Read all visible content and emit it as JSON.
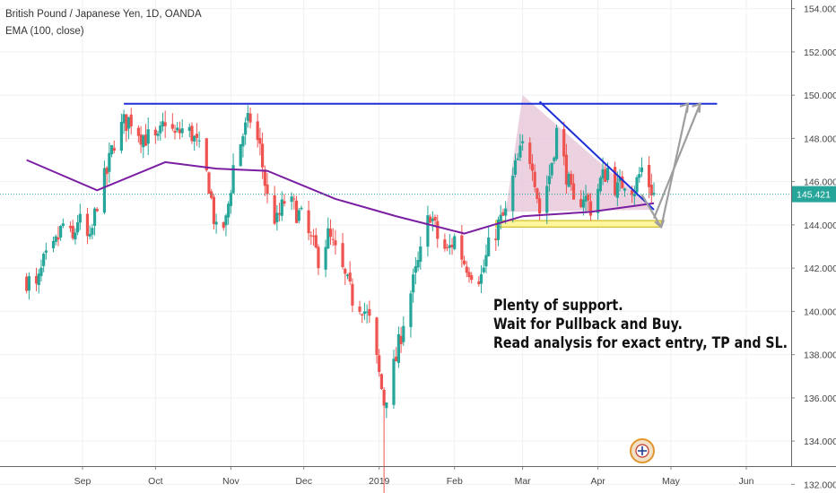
{
  "header": {
    "symbol_line": "British Pound / Japanese Yen, 1D, OANDA",
    "indicator_line": "EMA (100, close)"
  },
  "price_axis": {
    "ticks": [
      "154.000",
      "152.000",
      "150.000",
      "148.000",
      "146.000",
      "144.000",
      "142.000",
      "140.000",
      "138.000",
      "136.000",
      "134.000",
      "132.000"
    ],
    "current_price": "145.421",
    "current_price_color": "#26a69a"
  },
  "time_axis": {
    "ticks": [
      "Sep",
      "Oct",
      "Nov",
      "Dec",
      "2019",
      "Feb",
      "Mar",
      "Apr",
      "May",
      "Jun"
    ]
  },
  "annotation": {
    "lines": [
      "Plenty of support.",
      "Wait for Pullback and Buy.",
      "Read analysis for exact entry, TP and SL."
    ]
  },
  "colors": {
    "up": "#26a69a",
    "down": "#ef5350",
    "ema": "#7b1fa2",
    "resistance": "#1e2fd6",
    "triangle_fill": "#e5c3d6",
    "support_zone": "#fff59d",
    "projection_arrows": "#9e9e9e"
  },
  "chart_data": {
    "type": "candlestick",
    "instrument": "British Pound / Japanese Yen",
    "timeframe": "1D",
    "source": "OANDA",
    "ylim": [
      131.6,
      154.4
    ],
    "last_price": 145.421,
    "ema_period": 100,
    "resistance_level": 149.6,
    "support_zone": [
      143.9,
      144.2
    ],
    "close_path": [
      [
        "2018-08-09",
        141.5
      ],
      [
        "2018-08-13",
        141.0
      ],
      [
        "2018-08-16",
        142.2
      ],
      [
        "2018-08-20",
        142.8
      ],
      [
        "2018-08-24",
        144.0
      ],
      [
        "2018-08-28",
        143.2
      ],
      [
        "2018-08-30",
        144.3
      ],
      [
        "2018-09-04",
        143.1
      ],
      [
        "2018-09-07",
        145.1
      ],
      [
        "2018-09-11",
        146.4
      ],
      [
        "2018-09-14",
        147.9
      ],
      [
        "2018-09-18",
        148.7
      ],
      [
        "2018-09-21",
        148.9
      ],
      [
        "2018-09-25",
        148.2
      ],
      [
        "2018-09-28",
        148.0
      ],
      [
        "2018-10-02",
        147.8
      ],
      [
        "2018-10-05",
        148.9
      ],
      [
        "2018-10-09",
        148.1
      ],
      [
        "2018-10-12",
        148.4
      ],
      [
        "2018-10-16",
        148.2
      ],
      [
        "2018-10-19",
        147.4
      ],
      [
        "2018-10-23",
        145.9
      ],
      [
        "2018-10-26",
        143.6
      ],
      [
        "2018-10-30",
        144.1
      ],
      [
        "2018-11-02",
        146.7
      ],
      [
        "2018-11-06",
        148.2
      ],
      [
        "2018-11-09",
        148.9
      ],
      [
        "2018-11-13",
        147.5
      ],
      [
        "2018-11-16",
        145.2
      ],
      [
        "2018-11-20",
        144.1
      ],
      [
        "2018-11-23",
        145.1
      ],
      [
        "2018-11-27",
        144.8
      ],
      [
        "2018-11-30",
        144.3
      ],
      [
        "2018-12-04",
        143.2
      ],
      [
        "2018-12-07",
        142.5
      ],
      [
        "2018-12-11",
        143.5
      ],
      [
        "2018-12-14",
        142.7
      ],
      [
        "2018-12-18",
        141.5
      ],
      [
        "2018-12-21",
        140.6
      ],
      [
        "2018-12-25",
        140.3
      ],
      [
        "2018-12-28",
        139.5
      ],
      [
        "2019-01-03",
        135.8
      ],
      [
        "2019-01-08",
        137.8
      ],
      [
        "2019-01-11",
        139.6
      ],
      [
        "2019-01-15",
        141.3
      ],
      [
        "2019-01-18",
        142.6
      ],
      [
        "2019-01-22",
        144.6
      ],
      [
        "2019-01-25",
        143.4
      ],
      [
        "2019-01-29",
        142.7
      ],
      [
        "2019-02-01",
        143.4
      ],
      [
        "2019-02-05",
        142.3
      ],
      [
        "2019-02-08",
        141.9
      ],
      [
        "2019-02-12",
        141.6
      ],
      [
        "2019-02-15",
        142.9
      ],
      [
        "2019-02-19",
        144.0
      ],
      [
        "2019-02-22",
        144.5
      ],
      [
        "2019-02-26",
        146.6
      ],
      [
        "2019-03-01",
        147.6
      ],
      [
        "2019-03-05",
        147.0
      ],
      [
        "2019-03-08",
        144.6
      ],
      [
        "2019-03-12",
        146.3
      ],
      [
        "2019-03-15",
        148.3
      ],
      [
        "2019-03-19",
        146.4
      ],
      [
        "2019-03-22",
        144.8
      ],
      [
        "2019-03-26",
        145.4
      ],
      [
        "2019-03-29",
        144.8
      ],
      [
        "2019-04-02",
        146.0
      ],
      [
        "2019-04-05",
        146.6
      ],
      [
        "2019-04-09",
        145.6
      ],
      [
        "2019-04-12",
        146.1
      ],
      [
        "2019-04-16",
        145.7
      ],
      [
        "2019-04-19",
        146.6
      ],
      [
        "2019-04-22",
        145.9
      ],
      [
        "2019-04-24",
        145.4
      ]
    ],
    "ema_path": [
      [
        "2018-08-09",
        147.0
      ],
      [
        "2018-09-07",
        145.6
      ],
      [
        "2018-10-05",
        146.9
      ],
      [
        "2018-10-26",
        146.6
      ],
      [
        "2018-11-16",
        146.5
      ],
      [
        "2018-12-14",
        145.2
      ],
      [
        "2019-01-08",
        144.4
      ],
      [
        "2019-02-05",
        143.6
      ],
      [
        "2019-03-01",
        144.4
      ],
      [
        "2019-03-29",
        144.6
      ],
      [
        "2019-04-24",
        145.0
      ]
    ]
  }
}
